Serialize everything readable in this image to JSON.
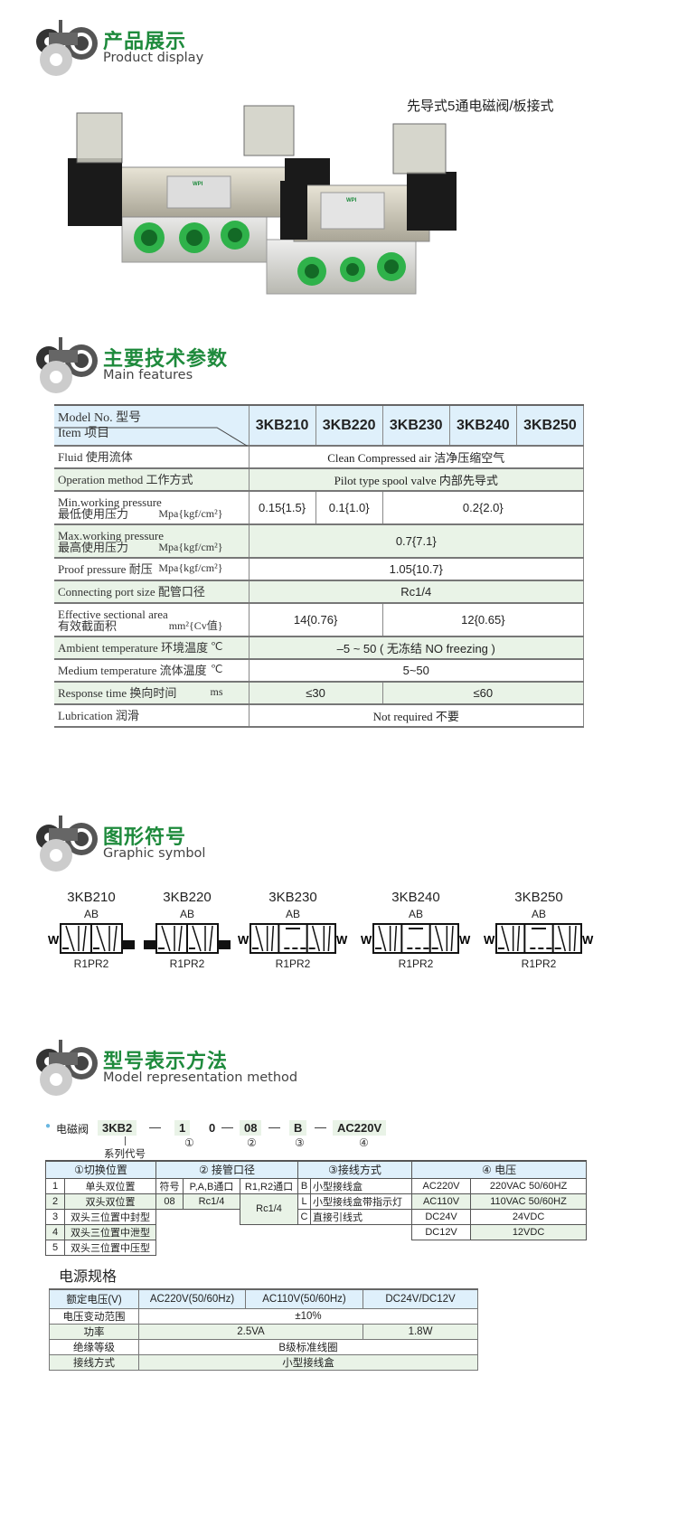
{
  "sections": {
    "product": {
      "cn": "产品展示",
      "en": "Product display"
    },
    "features": {
      "cn": "主要技术参数",
      "en": "Main features"
    },
    "symbol": {
      "cn": "图形符号",
      "en": "Graphic symbol"
    },
    "model": {
      "cn": "型号表示方法",
      "en": "Model representation method"
    }
  },
  "product": {
    "caption": "先导式5通电磁阀/板接式",
    "valve_brand": "WPI"
  },
  "colors": {
    "accent_green": "#1e8a3c",
    "header_blue": "#dff0fb",
    "row_green": "#e9f3e7",
    "port_green": "#2fb24a"
  },
  "spec_table": {
    "model_label": "Model No. 型号",
    "item_label": "Item 项目",
    "models": [
      "3KB210",
      "3KB220",
      "3KB230",
      "3KB240",
      "3KB250"
    ],
    "rows": [
      {
        "lines": [
          "Fluid 使用流体"
        ],
        "unit": "",
        "cells": [
          {
            "text": "Clean Compressed  air  洁净压缩空气",
            "span": 5,
            "serif": true
          }
        ]
      },
      {
        "lines": [
          "Operation method  工作方式"
        ],
        "unit": "",
        "cells": [
          {
            "text": "Pilot type spool valve 内部先导式",
            "span": 5,
            "serif": true
          }
        ]
      },
      {
        "lines": [
          "Min.working pressure",
          "最低使用压力"
        ],
        "unit": "Mpa{kgf/cm²}",
        "cells": [
          {
            "text": "0.15{1.5}",
            "span": 1
          },
          {
            "text": "0.1{1.0}",
            "span": 1
          },
          {
            "text": "0.2{2.0}",
            "span": 3
          }
        ]
      },
      {
        "lines": [
          "Max.working pressure",
          "最高使用压力"
        ],
        "unit": "Mpa{kgf/cm²}",
        "cells": [
          {
            "text": "0.7{7.1}",
            "span": 5
          }
        ]
      },
      {
        "lines": [
          "Proof pressure 耐压"
        ],
        "unit": "Mpa{kgf/cm²}",
        "cells": [
          {
            "text": "1.05{10.7}",
            "span": 5
          }
        ]
      },
      {
        "lines": [
          "Connecting port size  配管口径"
        ],
        "unit": "",
        "cells": [
          {
            "text": "Rc1/4",
            "span": 5
          }
        ]
      },
      {
        "lines": [
          "Effective sectional area",
          "有效截面积"
        ],
        "unit": "mm²{Cv值}",
        "cells": [
          {
            "text": "14{0.76}",
            "span": 2
          },
          {
            "text": "12{0.65}",
            "span": 3
          }
        ]
      },
      {
        "lines": [
          "Ambient temperature 环境温度"
        ],
        "unit": "℃",
        "cells": [
          {
            "text": "–5 ~ 50 ( 无冻结  NO freezing )",
            "span": 5
          }
        ]
      },
      {
        "lines": [
          "Medium temperature 流体温度"
        ],
        "unit": "℃",
        "cells": [
          {
            "text": "5~50",
            "span": 5
          }
        ]
      },
      {
        "lines": [
          "Response time 换向时间"
        ],
        "unit": "ms",
        "cells": [
          {
            "text": "≤30",
            "span": 2
          },
          {
            "text": "≤60",
            "span": 3
          }
        ]
      },
      {
        "lines": [
          "Lubrication 润滑"
        ],
        "unit": "",
        "cells": [
          {
            "text": "Not required  不要",
            "span": 5,
            "serif": true
          }
        ]
      }
    ]
  },
  "symbols": [
    {
      "model": "3KB210",
      "top": "AB",
      "bottom": "R1PR2"
    },
    {
      "model": "3KB220",
      "top": "AB",
      "bottom": "R1PR2"
    },
    {
      "model": "3KB230",
      "top": "AB",
      "bottom": "R1PR2"
    },
    {
      "model": "3KB240",
      "top": "AB",
      "bottom": "R1PR2"
    },
    {
      "model": "3KB250",
      "top": "AB",
      "bottom": "R1PR2"
    }
  ],
  "model_code": {
    "prefix": "电磁阀",
    "parts": [
      "3KB2",
      "1",
      "0",
      "08",
      "B",
      "AC220V"
    ],
    "series_label": "系列代号",
    "markers": [
      "①",
      "②",
      "③",
      "④"
    ]
  },
  "model_table": {
    "headers": [
      "①切换位置",
      "② 接管口径",
      "③接线方式",
      "④ 电压"
    ],
    "switch": [
      [
        "1",
        "单头双位置"
      ],
      [
        "2",
        "双头双位置"
      ],
      [
        "3",
        "双头三位置中封型"
      ],
      [
        "4",
        "双头三位置中泄型"
      ],
      [
        "5",
        "双头三位置中压型"
      ]
    ],
    "port": {
      "h1": "符号",
      "h2": "P,A,B通口",
      "h3": "R1,R2通口",
      "code": "08",
      "pab": "Rc1/4",
      "r": "Rc1/4"
    },
    "wiring": [
      [
        "B",
        "小型接线盒"
      ],
      [
        "L",
        "小型接线盒带指示灯"
      ],
      [
        "C",
        "直接引线式"
      ]
    ],
    "voltage": [
      [
        "AC220V",
        "220VAC  50/60HZ"
      ],
      [
        "AC110V",
        "110VAC  50/60HZ"
      ],
      [
        "DC24V",
        "24VDC"
      ],
      [
        "DC12V",
        "12VDC"
      ]
    ]
  },
  "power": {
    "title": "电源规格",
    "header": [
      "额定电压(V)",
      "AC220V(50/60Hz)",
      "AC110V(50/60Hz)",
      "DC24V/DC12V"
    ],
    "range_label": "电压变动范围",
    "range": "±10%",
    "power_label": "功率",
    "power_ac": "2.5VA",
    "power_dc": "1.8W",
    "insulation_label": "绝缘等级",
    "insulation": "B级标准线圈",
    "wiring_label": "接线方式",
    "wiring": "小型接线盒"
  }
}
